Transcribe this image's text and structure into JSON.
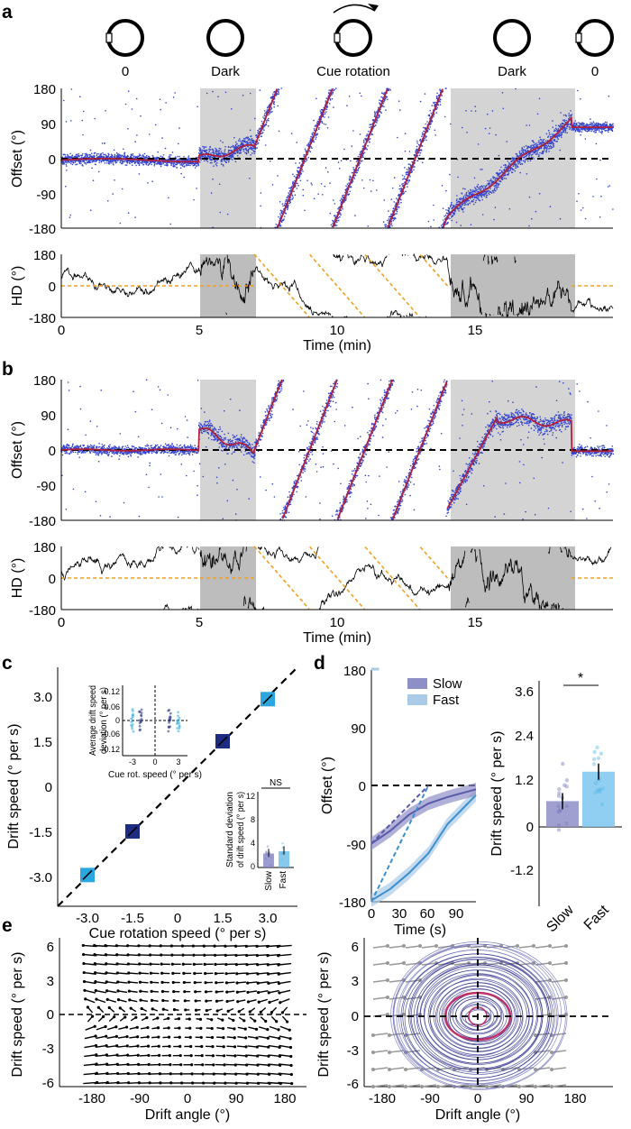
{
  "panels": {
    "a": "a",
    "b": "b",
    "c": "c",
    "d": "d",
    "e": "e"
  },
  "cue_icons": {
    "labels": [
      "0",
      "Dark",
      "Cue rotation",
      "Dark",
      "0"
    ]
  },
  "chart_data": [
    {
      "id": "a_offset",
      "type": "scatter",
      "ylabel": "Offset (°)",
      "yticks": [
        "180",
        "90",
        "0",
        "-90",
        "-180"
      ],
      "ylim": [
        -180,
        180
      ],
      "xlim": [
        0,
        20
      ],
      "dark_epochs": [
        [
          5,
          7
        ],
        [
          14,
          18.5
        ]
      ],
      "rotation_epochs": [
        [
          7,
          14
        ]
      ],
      "zero_line": "dashed",
      "series": [
        {
          "name": "fit",
          "color": "#b0203c"
        },
        {
          "name": "samples",
          "color": "#3344cc"
        }
      ]
    },
    {
      "id": "a_hd",
      "type": "line",
      "ylabel": "HD (°)",
      "yticks": [
        "180",
        "0",
        "-180"
      ],
      "ylim": [
        -180,
        180
      ],
      "xlabel": "Time (min)",
      "xticks": [
        "0",
        "5",
        "10",
        "15"
      ],
      "xlim": [
        0,
        20
      ],
      "dark_epochs": [
        [
          5,
          7
        ],
        [
          14,
          18.5
        ]
      ]
    },
    {
      "id": "b_offset",
      "type": "scatter",
      "ylabel": "Offset (°)",
      "yticks": [
        "180",
        "90",
        "0",
        "-90",
        "-180"
      ],
      "ylim": [
        -180,
        180
      ],
      "xlim": [
        0,
        20
      ],
      "dark_epochs": [
        [
          5,
          7
        ],
        [
          14,
          18.5
        ]
      ]
    },
    {
      "id": "b_hd",
      "type": "line",
      "ylabel": "HD (°)",
      "yticks": [
        "180",
        "0",
        "-180"
      ],
      "ylim": [
        -180,
        180
      ],
      "xlabel": "Time (min)",
      "xticks": [
        "0",
        "5",
        "10",
        "15"
      ],
      "xlim": [
        0,
        20
      ],
      "dark_epochs": [
        [
          5,
          7
        ],
        [
          14,
          18.5
        ]
      ]
    },
    {
      "id": "c_main",
      "type": "scatter",
      "xlabel": "Cue rotation speed (° per s)",
      "ylabel": "Drift speed (° per s)",
      "xticks": [
        "-3.0",
        "-1.5",
        "0",
        "1.5",
        "3.0"
      ],
      "yticks": [
        "3.0",
        "1.5",
        "0",
        "-1.5",
        "-3.0"
      ],
      "xlim": [
        -4,
        4
      ],
      "ylim": [
        -4,
        4
      ],
      "x": [
        -3.0,
        -1.5,
        1.5,
        3.0
      ],
      "y": [
        -2.95,
        -1.5,
        1.5,
        2.9
      ],
      "colors": [
        "#2ba7df",
        "#1d2b80",
        "#1d2b80",
        "#2ba7df"
      ]
    },
    {
      "id": "c_inset1",
      "type": "scatter",
      "xlabel": "Cue rot. speed (° per s)",
      "ylabel": "Average drift speed deviation (° per s)",
      "xticks": [
        "-3",
        "0",
        "3"
      ],
      "yticks": [
        "0.12",
        "0.06",
        "0",
        "-0.06",
        "-0.12"
      ],
      "ylim": [
        -0.14,
        0.14
      ]
    },
    {
      "id": "c_inset2",
      "type": "bar",
      "ylabel": "Standard deviation of drift speed (° per s)",
      "categories": [
        "Slow",
        "Fast"
      ],
      "values": [
        2.4,
        2.8
      ],
      "yticks": [
        "12",
        "8",
        "4",
        "0"
      ],
      "ylim": [
        0,
        13
      ],
      "annotation": "NS"
    },
    {
      "id": "d_line",
      "type": "line",
      "xlabel": "Time (s)",
      "ylabel": "Offset (°)",
      "xticks": [
        "0",
        "30",
        "60",
        "90"
      ],
      "yticks": [
        "180",
        "90",
        "0",
        "-90",
        "-180"
      ],
      "xlim": [
        0,
        110
      ],
      "ylim": [
        -180,
        180
      ],
      "legend": [
        "Slow",
        "Fast"
      ],
      "series": [
        {
          "name": "Slow",
          "color": "#5a5aaa",
          "x": [
            0,
            20,
            40,
            60,
            80,
            100,
            110
          ],
          "y": [
            -90,
            -70,
            -45,
            -28,
            -18,
            -10,
            -6
          ]
        },
        {
          "name": "Fast",
          "color": "#3c8fcf",
          "x": [
            0,
            20,
            40,
            60,
            80,
            100,
            110
          ],
          "y": [
            -178,
            -160,
            -135,
            -105,
            -60,
            -30,
            -15
          ]
        }
      ]
    },
    {
      "id": "d_bar",
      "type": "bar",
      "ylabel": "Drift speed (° per s)",
      "categories": [
        "Slow",
        "Fast"
      ],
      "values": [
        0.7,
        1.5
      ],
      "yticks": [
        "3.6",
        "2.4",
        "1.2",
        "0",
        "-1.2"
      ],
      "ylim": [
        -1.4,
        4.0
      ],
      "annotation": "*"
    },
    {
      "id": "e_left",
      "type": "scatter",
      "xlabel": "Drift angle (°)",
      "ylabel": "Drift speed (° per s)",
      "xticks": [
        "-180",
        "-90",
        "0",
        "90",
        "180"
      ],
      "yticks": [
        "6",
        "3",
        "0",
        "-3",
        "-6"
      ],
      "xlim": [
        -200,
        200
      ],
      "ylim": [
        -7,
        7
      ]
    },
    {
      "id": "e_right",
      "type": "line",
      "xlabel": "Drift angle (°)",
      "ylabel": "Drift speed (° per s)",
      "xticks": [
        "-180",
        "-90",
        "0",
        "90",
        "180"
      ],
      "yticks": [
        "6",
        "3",
        "0",
        "-3",
        "-6"
      ],
      "xlim": [
        -200,
        200
      ],
      "ylim": [
        -7,
        7
      ]
    }
  ]
}
